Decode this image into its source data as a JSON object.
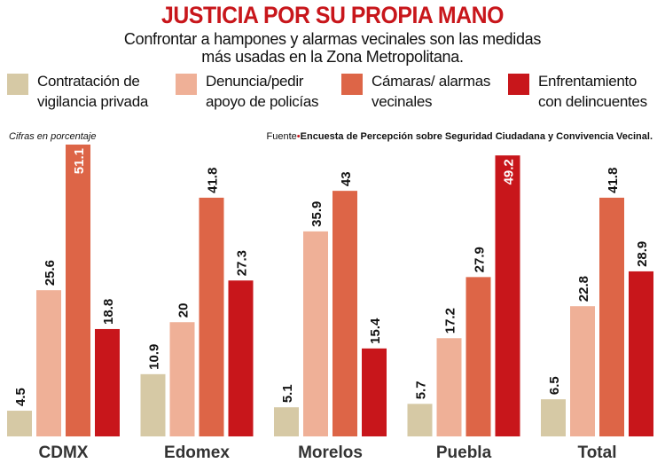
{
  "title": "JUSTICIA POR SU PROPIA MANO",
  "subtitle_line1": "Confrontar a hampones y alarmas vecinales son las medidas",
  "subtitle_line2": "más usadas en la Zona Metropolitana.",
  "note": "Cifras en porcentaje",
  "source_label": "Fuente",
  "source_text": "Encuesta de Percepción sobre Seguridad Ciudadana y Convivencia Vecinal.",
  "chart_data": {
    "type": "bar",
    "categories": [
      "CDMX",
      "Edomex",
      "Morelos",
      "Puebla",
      "Total"
    ],
    "ylim": [
      0,
      52
    ],
    "grid": false,
    "legend_placement": "top",
    "series": [
      {
        "name": "Contratación de vigilancia privada",
        "name_l1": "Contratación de",
        "name_l2": "vigilancia privada",
        "color": "#d6c9a5",
        "values": [
          4.5,
          10.9,
          5.1,
          5.7,
          6.5
        ]
      },
      {
        "name": "Denuncia/pedir apoyo de policías",
        "name_l1": "Denuncia/pedir",
        "name_l2": "apoyo de policías",
        "color": "#efb097",
        "values": [
          25.6,
          20,
          35.9,
          17.2,
          22.8
        ]
      },
      {
        "name": "Cámaras/ alarmas vecinales",
        "name_l1": "Cámaras/ alarmas",
        "name_l2": "vecinales",
        "color": "#dd6547",
        "values": [
          51.1,
          41.8,
          43,
          27.9,
          41.8
        ]
      },
      {
        "name": "Enfrentamiento con delincuentes",
        "name_l1": "Enfrentamiento",
        "name_l2": "con delincuentes",
        "color": "#c8161b",
        "values": [
          18.8,
          27.3,
          15.4,
          49.2,
          28.9
        ]
      }
    ]
  }
}
